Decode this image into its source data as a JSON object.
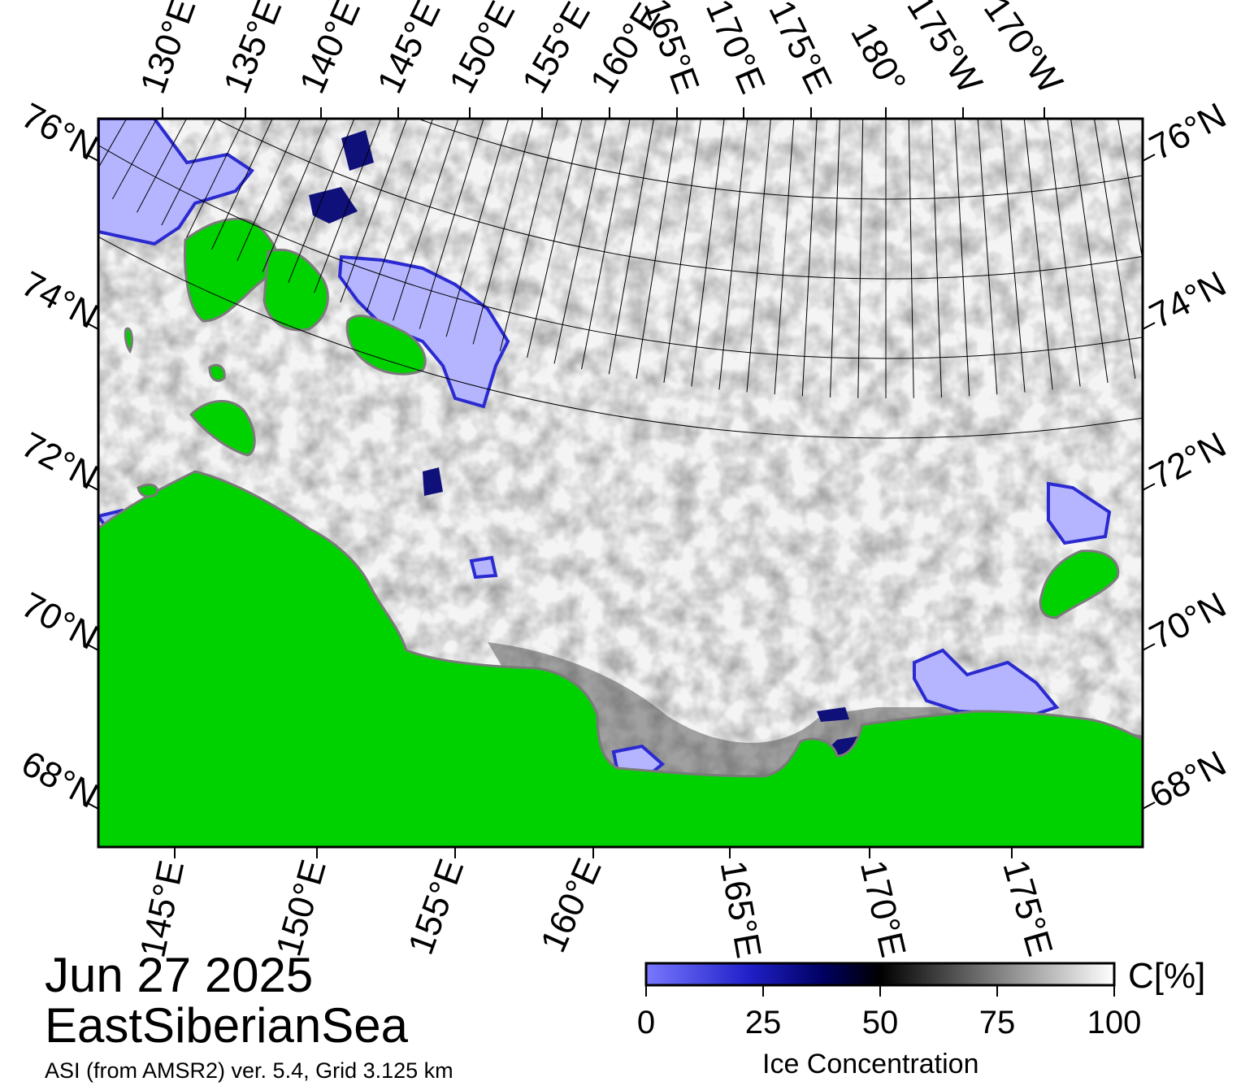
{
  "date": "Jun 27 2025",
  "region": "EastSiberianSea",
  "source": "ASI (from AMSR2) ver. 5.4,  Grid 3.125 km",
  "top_lon_labels": [
    "130°E",
    "135°E",
    "140°E",
    "145°E",
    "150°E",
    "155°E",
    "160°E",
    "165°E",
    "170°E",
    "175°E",
    "180°",
    "175°W",
    "170°W"
  ],
  "bottom_lon_labels": [
    "145°E",
    "150°E",
    "155°E",
    "160°E",
    "165°E",
    "170°E",
    "175°E"
  ],
  "left_lat_labels": [
    "76°N",
    "74°N",
    "72°N",
    "70°N",
    "68°N"
  ],
  "right_lat_labels": [
    "76°N",
    "74°N",
    "72°N",
    "70°N",
    "68°N"
  ],
  "colorbar": {
    "title": "Ice Concentration",
    "unit": "C[%]",
    "ticks": [
      "0",
      "25",
      "50",
      "75",
      "100"
    ]
  },
  "colors": {
    "land": "#00d200",
    "open_water_low_conc": "#b4b4ff",
    "ice_mid": "#000060",
    "ice_full": "#ffffff",
    "coast_outline": "#808080"
  }
}
